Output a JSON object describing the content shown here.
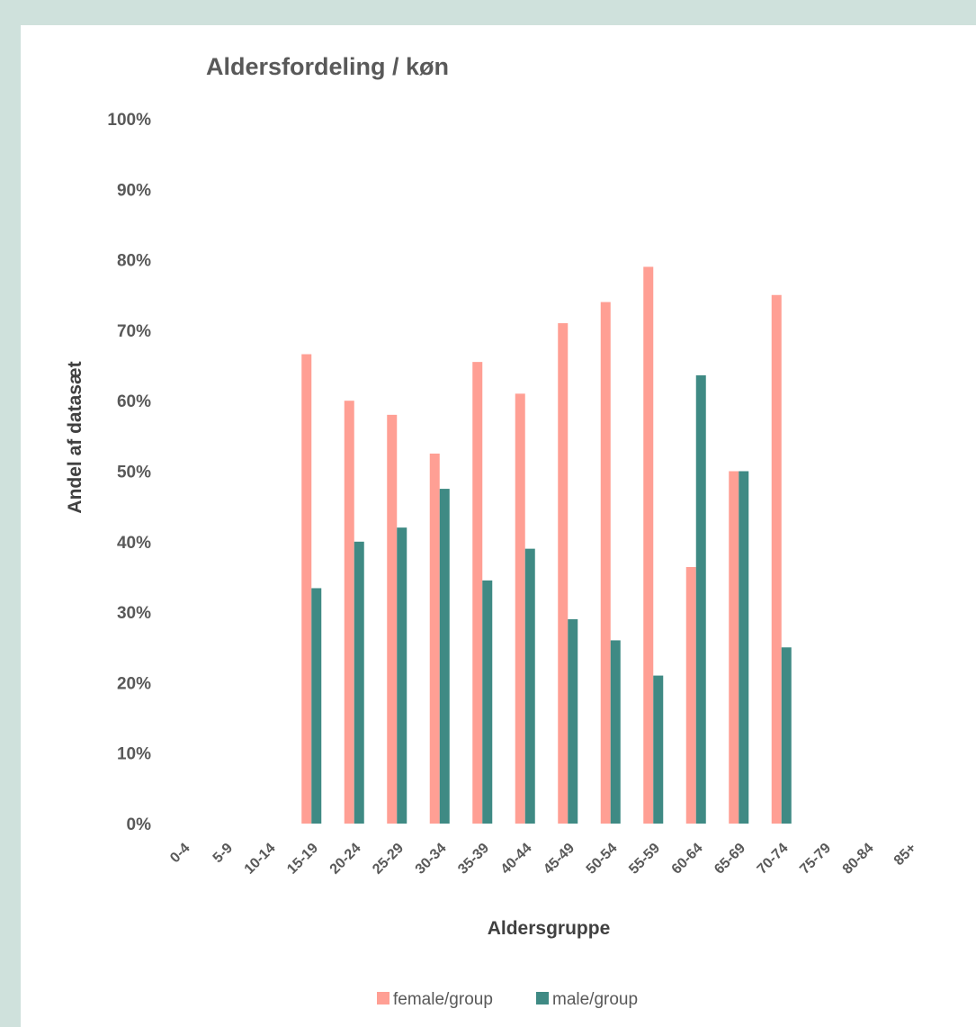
{
  "chart_data": {
    "type": "bar",
    "title": "Aldersfordeling / køn",
    "xlabel": "Aldersgruppe",
    "ylabel": "Andel af datasæt",
    "ylim": [
      0,
      1
    ],
    "y_ticks": [
      "0%",
      "10%",
      "20%",
      "30%",
      "40%",
      "50%",
      "60%",
      "70%",
      "80%",
      "90%",
      "100%"
    ],
    "grid": false,
    "legend_position": "bottom",
    "categories": [
      "0-4",
      "5-9",
      "10-14",
      "15-19",
      "20-24",
      "25-29",
      "30-34",
      "35-39",
      "40-44",
      "45-49",
      "50-54",
      "55-59",
      "60-64",
      "65-69",
      "70-74",
      "75-79",
      "80-84",
      "85+"
    ],
    "series": [
      {
        "name": "female/group",
        "color": "#ff9f94",
        "values": [
          null,
          null,
          null,
          0.666,
          0.6,
          0.58,
          0.525,
          0.655,
          0.61,
          0.71,
          0.74,
          0.79,
          0.364,
          0.5,
          0.75,
          null,
          null,
          null
        ]
      },
      {
        "name": "male/group",
        "color": "#3f8a84",
        "values": [
          null,
          null,
          null,
          0.334,
          0.4,
          0.42,
          0.475,
          0.345,
          0.39,
          0.29,
          0.26,
          0.21,
          0.636,
          0.5,
          0.25,
          null,
          null,
          null
        ]
      }
    ]
  }
}
